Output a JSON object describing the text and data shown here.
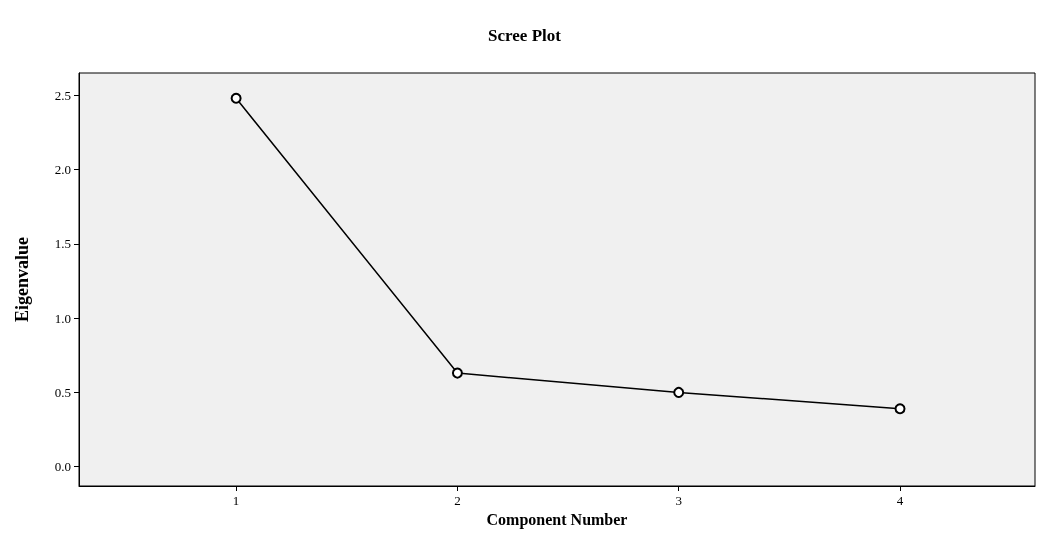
{
  "chart_data": {
    "type": "line",
    "title": "Scree Plot",
    "xlabel": "Component Number",
    "ylabel": "Eigenvalue",
    "x": [
      1,
      2,
      3,
      4
    ],
    "values": [
      2.48,
      0.63,
      0.5,
      0.39
    ],
    "color": "#000000",
    "marker": "circle",
    "line_style": "solid",
    "grid": false,
    "xlim": [
      0.29,
      4.61
    ],
    "xticks": [
      1,
      2,
      3,
      4
    ],
    "ylim": [
      -0.13,
      2.65
    ],
    "yticks": [
      {
        "value": 0,
        "label": "0.0"
      },
      {
        "value": 0.5,
        "label": "0.5"
      },
      {
        "value": 1,
        "label": "1.0"
      },
      {
        "value": 1.5,
        "label": "1.5"
      },
      {
        "value": 2,
        "label": "2.0"
      },
      {
        "value": 2.5,
        "label": "2.5"
      }
    ]
  }
}
